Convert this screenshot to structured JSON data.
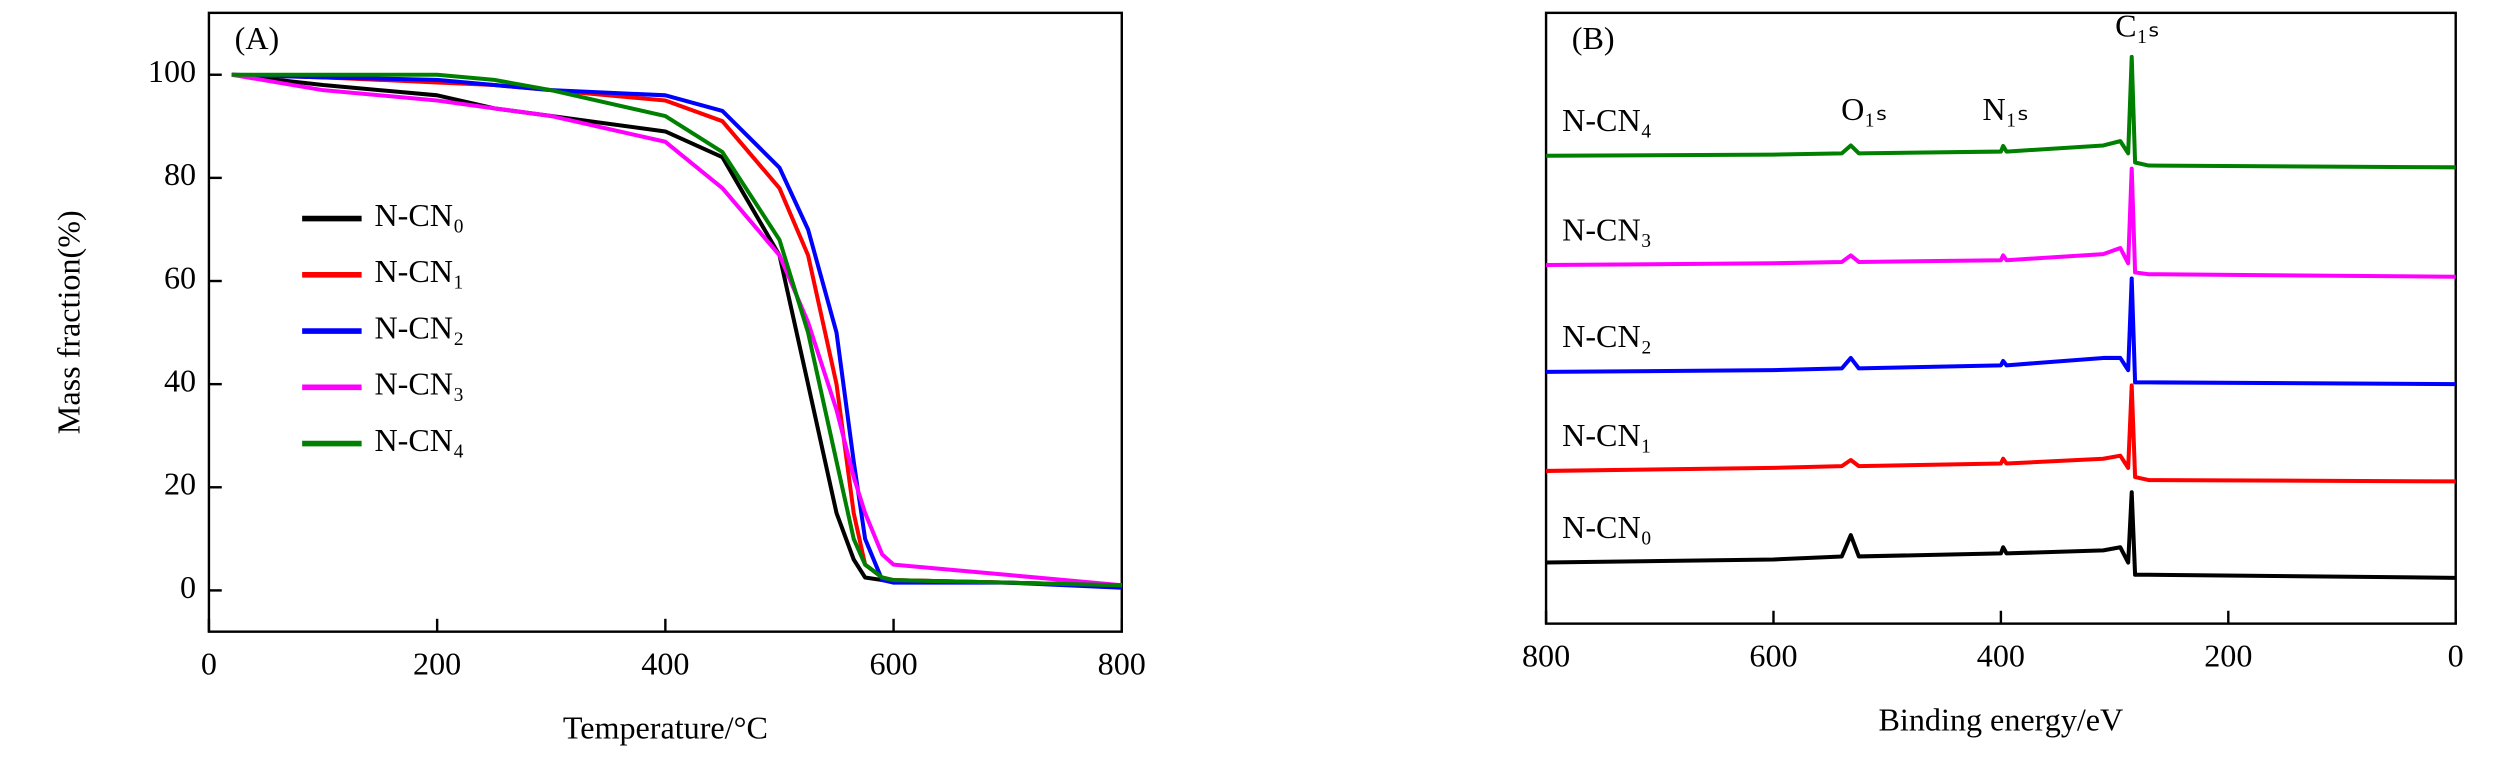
{
  "chart_data": [
    {
      "type": "line",
      "title": "(A)",
      "xlabel": "Temperature/°C",
      "ylabel": "Mass fraction(%)",
      "x": [
        20,
        100,
        200,
        250,
        300,
        400,
        450,
        500,
        525,
        550,
        565,
        575,
        590,
        600,
        700,
        800
      ],
      "series": [
        {
          "name": "N-CN₀",
          "color": "#000000",
          "values": [
            100,
            98,
            96,
            93.5,
            92,
            89,
            84,
            65,
            40,
            15,
            6,
            2.5,
            2,
            2,
            1.5,
            1
          ]
        },
        {
          "name": "N-CN₁",
          "color": "#ff0000",
          "values": [
            100,
            99.5,
            98.5,
            98,
            97,
            95,
            91,
            78,
            65,
            40,
            15,
            5,
            2.5,
            2,
            1.5,
            1
          ]
        },
        {
          "name": "N-CN₂",
          "color": "#0000ff",
          "values": [
            100,
            99.5,
            99,
            98,
            97,
            96,
            93,
            82,
            70,
            50,
            25,
            10,
            2,
            1.5,
            1.5,
            0.5
          ]
        },
        {
          "name": "N-CN₃",
          "color": "#ff00ff",
          "values": [
            100,
            97,
            95,
            93.5,
            92,
            87,
            78,
            65,
            52,
            35,
            22,
            15,
            7,
            5,
            3,
            1
          ]
        },
        {
          "name": "N-CN₄",
          "color": "#008000",
          "values": [
            100,
            100,
            100,
            99,
            97,
            92,
            85,
            68,
            50,
            25,
            10,
            5,
            2.5,
            2,
            1.5,
            1
          ]
        }
      ],
      "xlim": [
        0,
        800
      ],
      "ylim": [
        -8,
        112
      ],
      "xticks": [
        0,
        200,
        400,
        600,
        800
      ],
      "yticks": [
        0,
        20,
        40,
        60,
        80,
        100
      ],
      "legend": "center left"
    },
    {
      "type": "line",
      "title": "(B)",
      "xlabel": "Binding energy/eV",
      "x": [
        800,
        600,
        540,
        532,
        525,
        400,
        398,
        395,
        310,
        295,
        288,
        285,
        282,
        270,
        0
      ],
      "series": [
        {
          "name": "N-CN₀",
          "color": "#000000",
          "values": [
            10,
            10.5,
            11,
            14.5,
            11,
            11.5,
            12.5,
            11.5,
            12,
            12.5,
            10,
            21.5,
            8,
            8,
            7.5
          ]
        },
        {
          "name": "N-CN₁",
          "color": "#ff0000",
          "values": [
            25,
            25.5,
            25.8,
            26.8,
            25.8,
            26.2,
            27,
            26.2,
            27,
            27.5,
            25.5,
            39,
            24,
            23.5,
            23.3
          ]
        },
        {
          "name": "N-CN₂",
          "color": "#0000ff",
          "values": [
            41.2,
            41.5,
            41.8,
            43.5,
            41.8,
            42.3,
            43,
            42.3,
            43.5,
            43.5,
            41.5,
            56.5,
            39.5,
            39.5,
            39.2
          ]
        },
        {
          "name": "N-CN₃",
          "color": "#ff00ff",
          "values": [
            58.7,
            59,
            59.2,
            60.3,
            59.2,
            59.5,
            60.3,
            59.5,
            60.5,
            61.5,
            59,
            74.5,
            57.5,
            57.2,
            56.8
          ]
        },
        {
          "name": "N-CN₄",
          "color": "#008000",
          "values": [
            76.6,
            76.8,
            77,
            78.3,
            77,
            77.3,
            78.2,
            77.3,
            78.3,
            79,
            77,
            92.8,
            75.5,
            75,
            74.7
          ]
        }
      ],
      "annotations": [
        "O₁ₛ",
        "N₁ₛ",
        "C₁ₛ"
      ],
      "xlim": [
        800,
        0
      ],
      "ylim": [
        0,
        100
      ],
      "xticks": [
        800,
        600,
        400,
        200,
        0
      ],
      "legend": "inline"
    }
  ]
}
